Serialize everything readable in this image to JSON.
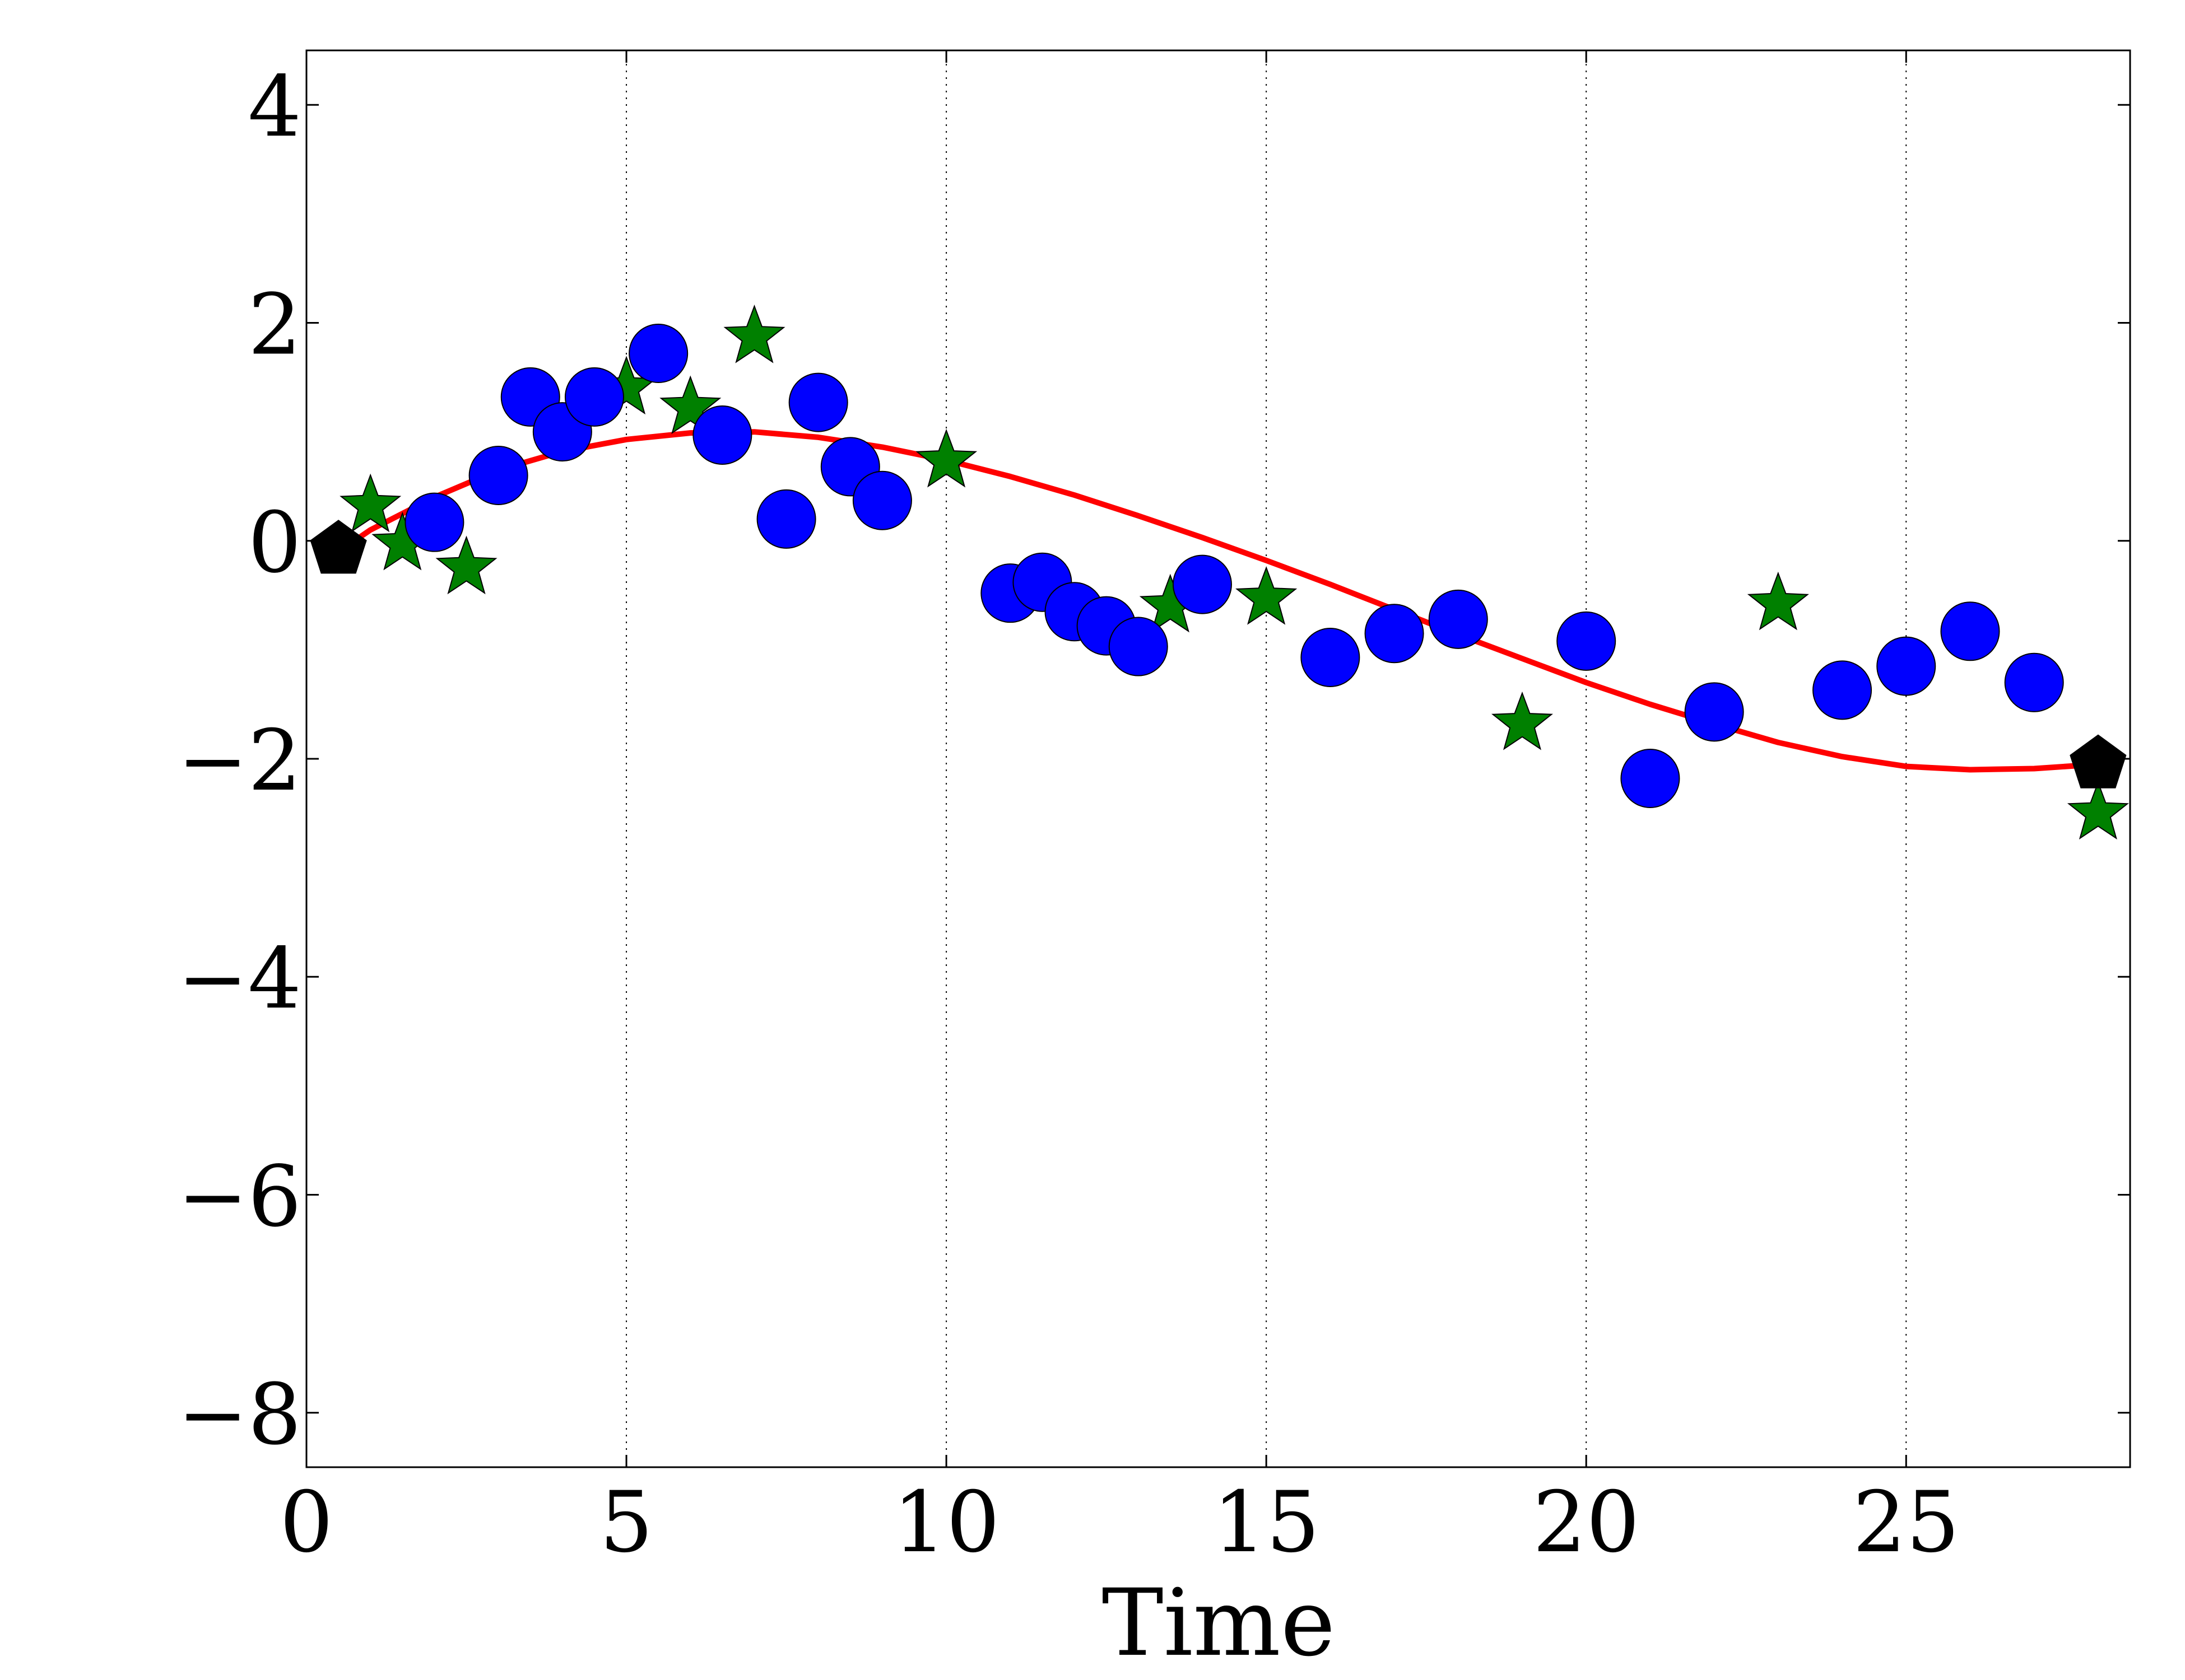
{
  "chart_data": {
    "type": "scatter",
    "title": "",
    "xlabel": "Time",
    "ylabel": "",
    "xlim": [
      0,
      28.5
    ],
    "ylim": [
      -8.5,
      4.5
    ],
    "xticks": [
      "0",
      "5",
      "10",
      "15",
      "20",
      "25"
    ],
    "yticks": [
      "4",
      "2",
      "0",
      "−2",
      "−4",
      "−6",
      "−8"
    ],
    "xtick_values": [
      0,
      5,
      10,
      15,
      20,
      25
    ],
    "ytick_values": [
      4,
      2,
      0,
      -2,
      -4,
      -6,
      -8
    ],
    "grid": "x-only dotted",
    "legend": "none",
    "colors": {
      "line": "#ff0000",
      "circles": "#0000ff",
      "stars": "#008000",
      "pentagons": "#000000"
    },
    "series": [
      {
        "marker": "line",
        "x": [
          0.5,
          1,
          2,
          3,
          4,
          5,
          6,
          7,
          8,
          9,
          10,
          11,
          12,
          13,
          14,
          15,
          16,
          17,
          18,
          19,
          20,
          21,
          22,
          23,
          24,
          25,
          26,
          27,
          28
        ],
        "y": [
          -0.1,
          0.1,
          0.4,
          0.65,
          0.82,
          0.93,
          0.99,
          1.0,
          0.95,
          0.86,
          0.74,
          0.59,
          0.42,
          0.23,
          0.03,
          -0.18,
          -0.4,
          -0.63,
          -0.86,
          -1.08,
          -1.3,
          -1.5,
          -1.68,
          -1.85,
          -1.98,
          -2.07,
          -2.1,
          -2.09,
          -2.05
        ]
      },
      {
        "marker": "circle",
        "x": [
          2,
          3,
          3.5,
          4,
          4.5,
          5.5,
          6.5,
          7.5,
          8,
          8.5,
          9,
          11,
          11.5,
          12,
          12.5,
          13,
          14,
          16,
          17,
          18,
          20,
          21,
          22,
          24,
          25,
          26,
          27
        ],
        "y": [
          0.17,
          0.6,
          1.32,
          1.0,
          1.32,
          1.72,
          0.97,
          0.2,
          1.27,
          0.68,
          0.37,
          -0.48,
          -0.38,
          -0.65,
          -0.78,
          -0.97,
          -0.4,
          -1.07,
          -0.85,
          -0.72,
          -0.92,
          -2.18,
          -1.57,
          -1.37,
          -1.15,
          -0.83,
          -1.3
        ]
      },
      {
        "marker": "star",
        "x": [
          1,
          1.5,
          2.5,
          5,
          6,
          7,
          10,
          13.5,
          15,
          19,
          23,
          28
        ],
        "y": [
          0.32,
          -0.03,
          -0.25,
          1.4,
          1.22,
          1.87,
          0.73,
          -0.6,
          -0.53,
          -1.68,
          -0.58,
          -2.5
        ]
      },
      {
        "marker": "pentagon",
        "x": [
          0.5,
          28
        ],
        "y": [
          -0.08,
          -2.05
        ]
      }
    ]
  }
}
